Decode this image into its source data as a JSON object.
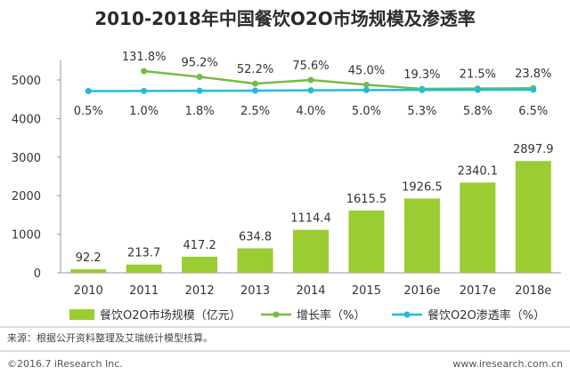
{
  "chart_data": {
    "type": "bar",
    "title": "2010-2018年中国餐饮O2O市场规模及渗透率",
    "categories": [
      "2010",
      "2011",
      "2012",
      "2013",
      "2014",
      "2015",
      "2016e",
      "2017e",
      "2018e"
    ],
    "ylim": [
      0,
      5000
    ],
    "yticks": [
      0,
      1000,
      2000,
      3000,
      4000,
      5000
    ],
    "series": [
      {
        "name": "餐饮O2O市场规模（亿元）",
        "kind": "bar",
        "color": "#9ACD32",
        "values": [
          92.2,
          213.7,
          417.2,
          634.8,
          1114.4,
          1615.5,
          1926.5,
          2340.1,
          2897.9
        ],
        "labels": [
          "92.2",
          "213.7",
          "417.2",
          "634.8",
          "1114.4",
          "1615.5",
          "1926.5",
          "2340.1",
          "2897.9"
        ]
      },
      {
        "name": "增长率（%）",
        "kind": "line",
        "color": "#77BB44",
        "values": [
          null,
          131.8,
          95.2,
          52.2,
          75.6,
          45.0,
          19.3,
          21.5,
          23.8
        ],
        "labels": [
          "",
          "131.8%",
          "95.2%",
          "52.2%",
          "75.6%",
          "45.0%",
          "19.3%",
          "21.5%",
          "23.8%"
        ]
      },
      {
        "name": "餐饮O2O渗透率（%）",
        "kind": "line",
        "color": "#22BBDD",
        "values": [
          0.5,
          1.0,
          1.8,
          2.5,
          4.0,
          5.0,
          5.3,
          5.8,
          6.5
        ],
        "labels": [
          "0.5%",
          "1.0%",
          "1.8%",
          "2.5%",
          "4.0%",
          "5.0%",
          "5.3%",
          "5.8%",
          "6.5%"
        ]
      }
    ],
    "legend_position": "bottom",
    "grid": false
  },
  "source": "来源：根据公开资料整理及艾瑞统计模型核算。",
  "footer_left": "©2016.7 iResearch Inc.",
  "footer_right": "www.iresearch.com.cn"
}
